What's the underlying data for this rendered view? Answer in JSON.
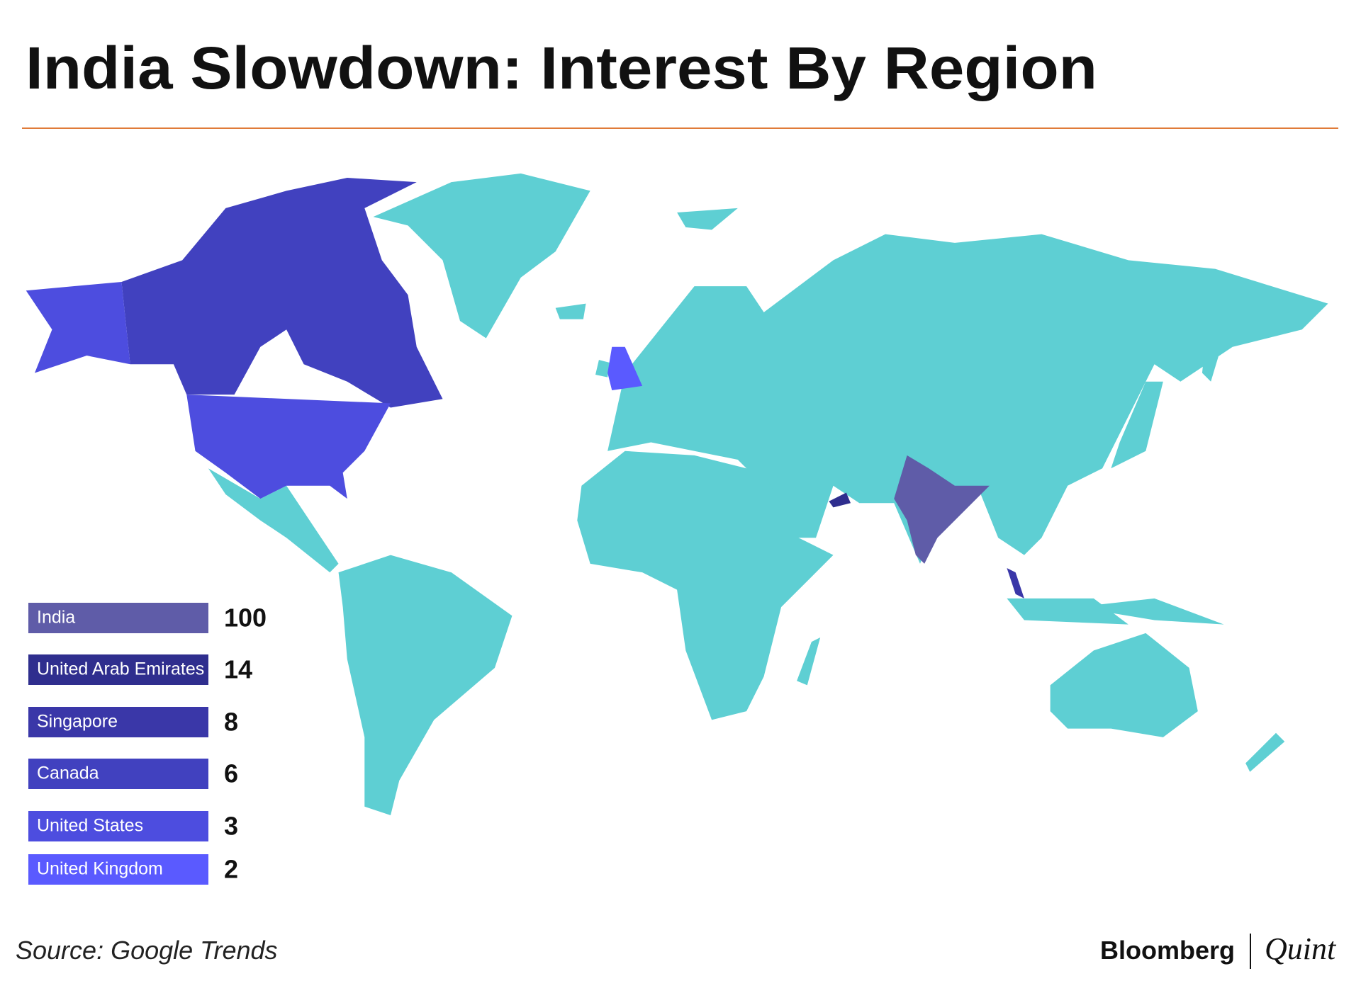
{
  "title": "India Slowdown: Interest By Region",
  "regions": [
    {
      "name": "India",
      "value": 100,
      "color": "#5f5ca8"
    },
    {
      "name": "United Arab Emirates",
      "value": 14,
      "color": "#2f2e8e"
    },
    {
      "name": "Singapore",
      "value": 8,
      "color": "#3a37a8"
    },
    {
      "name": "Canada",
      "value": 6,
      "color": "#4141bf"
    },
    {
      "name": "United States",
      "value": 3,
      "color": "#4d4ddf"
    },
    {
      "name": "United Kingdom",
      "value": 2,
      "color": "#5a5aff"
    }
  ],
  "other_color": "#5ecfd3",
  "source": "Source: Google Trends",
  "brand": {
    "left": "Bloomberg",
    "right": "Quint"
  }
}
